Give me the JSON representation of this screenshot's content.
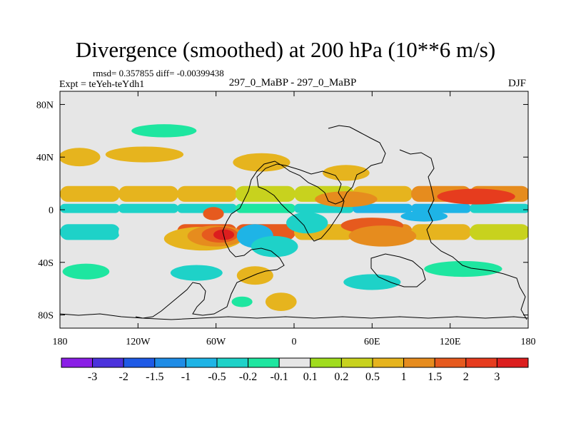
{
  "chart_data": {
    "type": "heatmap",
    "title": "Divergence (smoothed) at 200 hPa (10**6 m/s)",
    "stats_line": "rmsd= 0.357855 diff= -0.00399438",
    "expt_label": "Expt = teYeh-teYdh1",
    "subtitle_center": "297_0_MaBP - 297_0_MaBP",
    "season": "DJF",
    "xlim": [
      -180,
      180
    ],
    "ylim": [
      -90,
      90
    ],
    "x_ticks": [
      {
        "value": -180,
        "label": "180"
      },
      {
        "value": -120,
        "label": "120W"
      },
      {
        "value": -60,
        "label": "60W"
      },
      {
        "value": 0,
        "label": "0"
      },
      {
        "value": 60,
        "label": "60E"
      },
      {
        "value": 120,
        "label": "120E"
      },
      {
        "value": 180,
        "label": "180"
      }
    ],
    "y_ticks": [
      {
        "value": 80,
        "label": "80N"
      },
      {
        "value": 40,
        "label": "40N"
      },
      {
        "value": 0,
        "label": "0"
      },
      {
        "value": -40,
        "label": "40S"
      },
      {
        "value": -80,
        "label": "80S"
      }
    ],
    "colorbar": {
      "labels": [
        "-3",
        "-2",
        "-1.5",
        "-1",
        "-0.5",
        "-0.2",
        "-0.1",
        "0.1",
        "0.2",
        "0.5",
        "1",
        "1.5",
        "2",
        "3"
      ],
      "colors": [
        "#8a1ee6",
        "#4b32dc",
        "#1e5ae6",
        "#1e8ce6",
        "#1eb4e6",
        "#1ed2c8",
        "#1ee6a0",
        "#e6e6e6",
        "#a0dc1e",
        "#c8d21e",
        "#e6b41e",
        "#e68c1e",
        "#e65a1e",
        "#e63c1e",
        "#dc1e1e"
      ]
    },
    "features": [
      {
        "name": "N-subtropical-band",
        "lon": [
          -180,
          -135,
          -90,
          -45,
          0,
          45,
          90,
          135,
          180
        ],
        "lat_center": 12,
        "lat_halfwidth": 6,
        "values": [
          0.5,
          0.5,
          1,
          0.5,
          0.2,
          0.5,
          1,
          1.5,
          1
        ]
      },
      {
        "name": "equatorial-band",
        "lon": [
          -180,
          -135,
          -90,
          -45,
          0,
          45,
          90,
          135,
          180
        ],
        "lat_center": 1,
        "lat_halfwidth": 3.5,
        "values": [
          -0.5,
          -0.2,
          -0.5,
          -0.2,
          -0.2,
          -0.5,
          -1,
          -0.5,
          -0.5
        ]
      },
      {
        "name": "S-tropical-band",
        "lon": [
          -180,
          -135,
          -90,
          -45,
          0,
          45,
          90,
          135,
          180
        ],
        "lat_center": -17,
        "lat_halfwidth": 6,
        "values": [
          -0.5,
          -0.2,
          0.2,
          3,
          0.5,
          1,
          1,
          0.5,
          0.2
        ]
      }
    ],
    "blobs": [
      {
        "lon": -70,
        "lat": -22,
        "r_lon": 30,
        "r_lat": 9,
        "value": 0.5
      },
      {
        "lon": -60,
        "lat": -20,
        "r_lon": 22,
        "r_lat": 8,
        "value": 1
      },
      {
        "lon": -57,
        "lat": -19,
        "r_lon": 14,
        "r_lat": 6,
        "value": 1.5
      },
      {
        "lon": -54,
        "lat": -19,
        "r_lon": 8,
        "r_lat": 4,
        "value": 3
      },
      {
        "lon": -62,
        "lat": -3,
        "r_lon": 8,
        "r_lat": 5,
        "value": 1.5
      },
      {
        "lon": -30,
        "lat": -20,
        "r_lon": 14,
        "r_lat": 9,
        "value": -1
      },
      {
        "lon": -15,
        "lat": -28,
        "r_lon": 18,
        "r_lat": 8,
        "value": -0.5
      },
      {
        "lon": 10,
        "lat": -10,
        "r_lon": 16,
        "r_lat": 8,
        "value": -0.5
      },
      {
        "lon": 40,
        "lat": 28,
        "r_lon": 18,
        "r_lat": 6,
        "value": 0.5
      },
      {
        "lon": 40,
        "lat": 8,
        "r_lon": 24,
        "r_lat": 6,
        "value": 1
      },
      {
        "lon": 60,
        "lat": -12,
        "r_lon": 24,
        "r_lat": 6,
        "value": 1.5
      },
      {
        "lon": 68,
        "lat": -20,
        "r_lon": 26,
        "r_lat": 8,
        "value": 1
      },
      {
        "lon": 100,
        "lat": -5,
        "r_lon": 18,
        "r_lat": 4,
        "value": -1
      },
      {
        "lon": 140,
        "lat": 10,
        "r_lon": 30,
        "r_lat": 6,
        "value": 2
      },
      {
        "lon": -165,
        "lat": 40,
        "r_lon": 16,
        "r_lat": 7,
        "value": 0.5
      },
      {
        "lon": -115,
        "lat": 42,
        "r_lon": 30,
        "r_lat": 6,
        "value": 0.5
      },
      {
        "lon": -25,
        "lat": 36,
        "r_lon": 22,
        "r_lat": 7,
        "value": 0.5
      },
      {
        "lon": -160,
        "lat": -47,
        "r_lon": 18,
        "r_lat": 6,
        "value": -0.2
      },
      {
        "lon": -75,
        "lat": -48,
        "r_lon": 20,
        "r_lat": 6,
        "value": -0.5
      },
      {
        "lon": -30,
        "lat": -50,
        "r_lon": 14,
        "r_lat": 7,
        "value": 0.5
      },
      {
        "lon": -10,
        "lat": -70,
        "r_lon": 12,
        "r_lat": 7,
        "value": 0.5
      },
      {
        "lon": 60,
        "lat": -55,
        "r_lon": 22,
        "r_lat": 6,
        "value": -0.5
      },
      {
        "lon": 130,
        "lat": -45,
        "r_lon": 30,
        "r_lat": 6,
        "value": -0.2
      },
      {
        "lon": -100,
        "lat": 60,
        "r_lon": 25,
        "r_lat": 5,
        "value": -0.2
      },
      {
        "lon": -40,
        "lat": -70,
        "r_lon": 8,
        "r_lat": 4,
        "value": -0.2
      }
    ]
  }
}
